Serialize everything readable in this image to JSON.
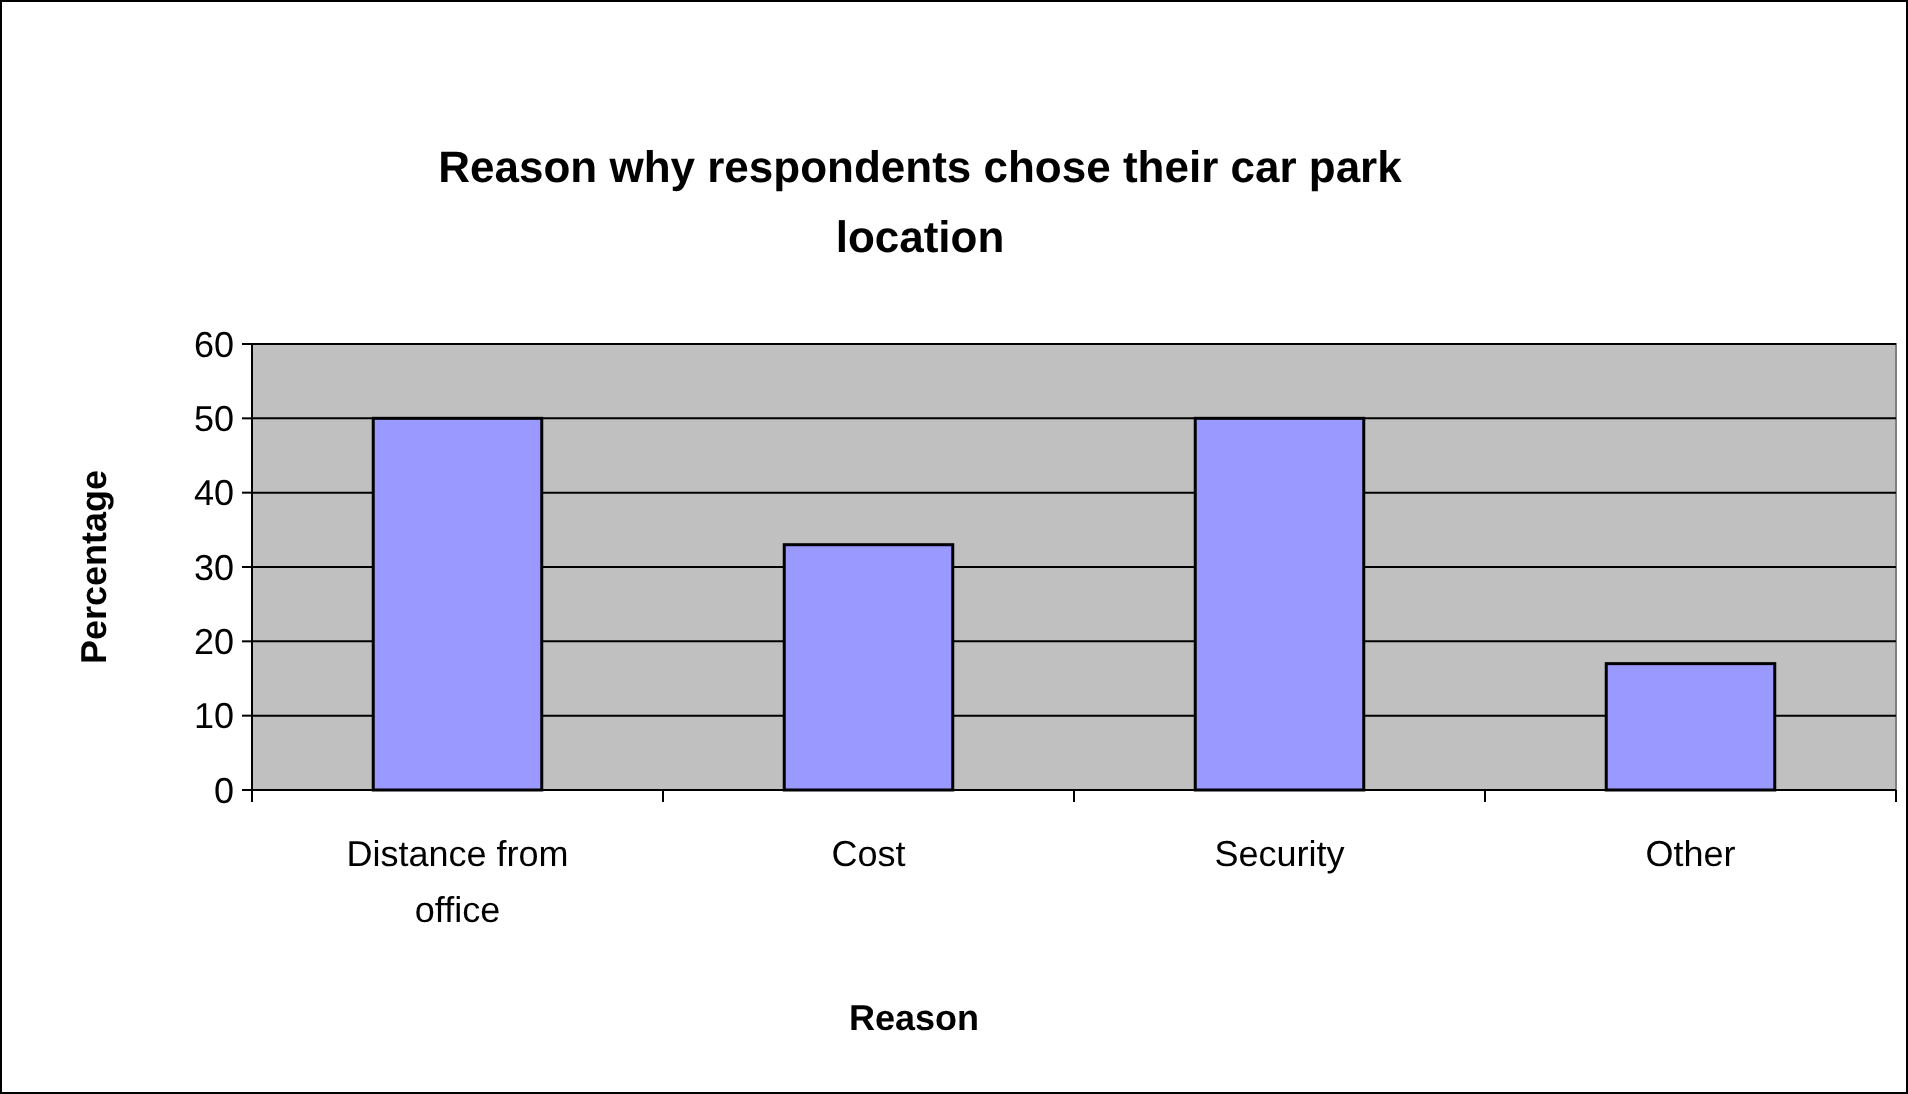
{
  "chart_data": {
    "type": "bar",
    "title": "Reason why respondents chose their car park location",
    "xlabel": "Reason",
    "ylabel": "Percentage",
    "categories": [
      "Distance from office",
      "Cost",
      "Security",
      "Other"
    ],
    "values": [
      50,
      33,
      50,
      17
    ],
    "color": "#9999ff",
    "ylim": [
      0,
      60
    ],
    "yticks": [
      0,
      10,
      20,
      30,
      40,
      50,
      60
    ],
    "grid": "y"
  }
}
